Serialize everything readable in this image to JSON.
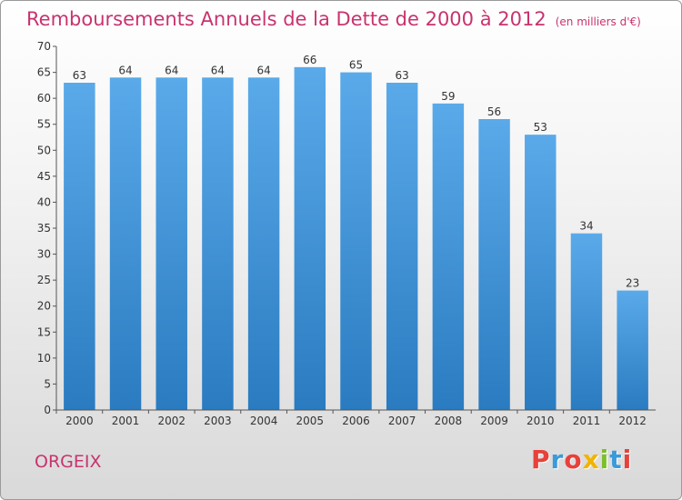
{
  "chart_data": {
    "type": "bar",
    "title": "Remboursements Annuels de la Dette de 2000 à 2012",
    "unit_label": "(en milliers d'€)",
    "categories": [
      "2000",
      "2001",
      "2002",
      "2003",
      "2004",
      "2005",
      "2006",
      "2007",
      "2008",
      "2009",
      "2010",
      "2011",
      "2012"
    ],
    "values": [
      63,
      64,
      64,
      64,
      64,
      66,
      65,
      63,
      59,
      56,
      53,
      34,
      23
    ],
    "ylim": [
      0,
      70
    ],
    "ytick_step": 5,
    "grid": false,
    "bar_color_top": "#5aaaea",
    "bar_color_bottom": "#2a7bc0"
  },
  "footer": {
    "town": "ORGEIX",
    "logo_text": "Proxiti",
    "logo_colors": [
      "#e8403a",
      "#3b9ad9",
      "#e8403a",
      "#f2b400",
      "#7cbf2a",
      "#3b9ad9",
      "#e8403a"
    ]
  },
  "colors": {
    "accent": "#c8336e"
  }
}
